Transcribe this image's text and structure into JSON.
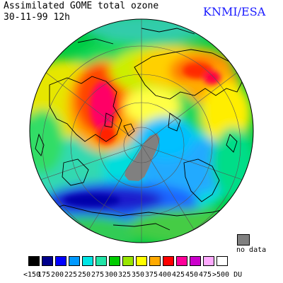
{
  "header": {
    "title": "Assimilated GOME total ozone",
    "date": "30-11-99 12h",
    "credit": "KNMI/ESA"
  },
  "map": {
    "projection": "north polar stereographic",
    "nodata_color": "#808080"
  },
  "nodata": {
    "label": "no data"
  },
  "legend": {
    "unit": "DU",
    "bins": [
      {
        "label": "<150",
        "color": "#000000"
      },
      {
        "label": "175",
        "color": "#00008b"
      },
      {
        "label": "200",
        "color": "#0000ff"
      },
      {
        "label": "225",
        "color": "#0099ff"
      },
      {
        "label": "250",
        "color": "#00e5e5"
      },
      {
        "label": "275",
        "color": "#22e5a8"
      },
      {
        "label": "300",
        "color": "#00cc00"
      },
      {
        "label": "325",
        "color": "#99e600"
      },
      {
        "label": "350",
        "color": "#ffff00"
      },
      {
        "label": "375",
        "color": "#ffaa00"
      },
      {
        "label": "400",
        "color": "#ff0000"
      },
      {
        "label": "425",
        "color": "#ff0099"
      },
      {
        "label": "450",
        "color": "#cc00cc"
      },
      {
        "label": "475",
        "color": "#ffaaff"
      },
      {
        "label": ">500 DU",
        "color": "#ffffff"
      }
    ]
  }
}
